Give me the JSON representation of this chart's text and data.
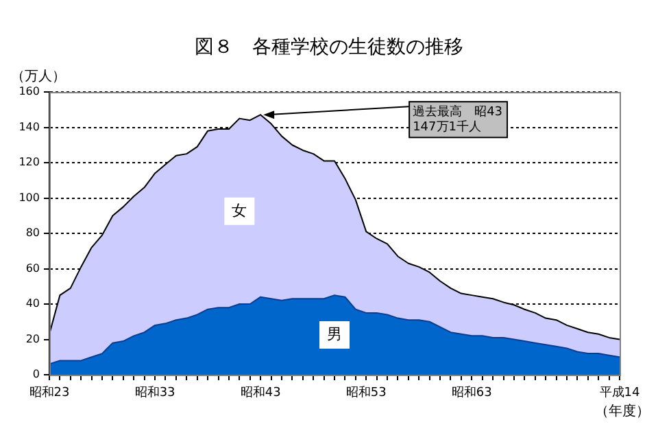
{
  "chart_data": {
    "type": "area",
    "stacked": true,
    "title": "図８　各種学校の生徒数の推移",
    "ylabel": "（万人）",
    "xlabel": "（年度）",
    "categories": [
      "昭和23",
      null,
      null,
      null,
      null,
      null,
      null,
      null,
      null,
      null,
      "昭和33",
      null,
      null,
      null,
      null,
      null,
      null,
      null,
      null,
      null,
      "昭和43",
      null,
      null,
      null,
      null,
      null,
      null,
      null,
      null,
      null,
      "昭和53",
      null,
      null,
      null,
      null,
      null,
      null,
      null,
      null,
      null,
      "昭和63",
      null,
      null,
      null,
      null,
      null,
      null,
      null,
      null,
      null,
      null,
      null,
      null,
      null,
      "平成14"
    ],
    "series": [
      {
        "name": "男",
        "color": "#0066cc",
        "values": [
          6,
          8,
          8,
          8,
          10,
          12,
          18,
          19,
          22,
          24,
          28,
          29,
          31,
          32,
          34,
          37,
          38,
          38,
          40,
          40,
          44,
          43,
          42,
          43,
          43,
          43,
          43,
          45,
          44,
          37,
          35,
          35,
          34,
          32,
          31,
          31,
          30,
          27,
          24,
          23,
          22,
          22,
          21,
          21,
          20,
          19,
          18,
          17,
          16,
          15,
          13,
          12,
          12,
          11,
          10
        ]
      },
      {
        "name": "女",
        "color": "#ccccff",
        "values": [
          17,
          37,
          41,
          53,
          62,
          67,
          72,
          76,
          79,
          82,
          86,
          90,
          93,
          93,
          95,
          101,
          101,
          101,
          105,
          104,
          103.1,
          99,
          93,
          87,
          84,
          82,
          78,
          76,
          67,
          62,
          46,
          42,
          40,
          35,
          32,
          30,
          28,
          26,
          25,
          23,
          23,
          22,
          22,
          20,
          19.5,
          18,
          17,
          15,
          15,
          13,
          13,
          12,
          11,
          10,
          10
        ]
      }
    ],
    "ylim": [
      0,
      160
    ],
    "yticks": [
      0,
      20,
      40,
      60,
      80,
      100,
      120,
      140,
      160
    ],
    "grid": "y",
    "legend": false,
    "annotations": [
      {
        "text": "過去最高　昭43\n147万1千人",
        "x": "昭和43",
        "y": 147.1
      }
    ]
  }
}
